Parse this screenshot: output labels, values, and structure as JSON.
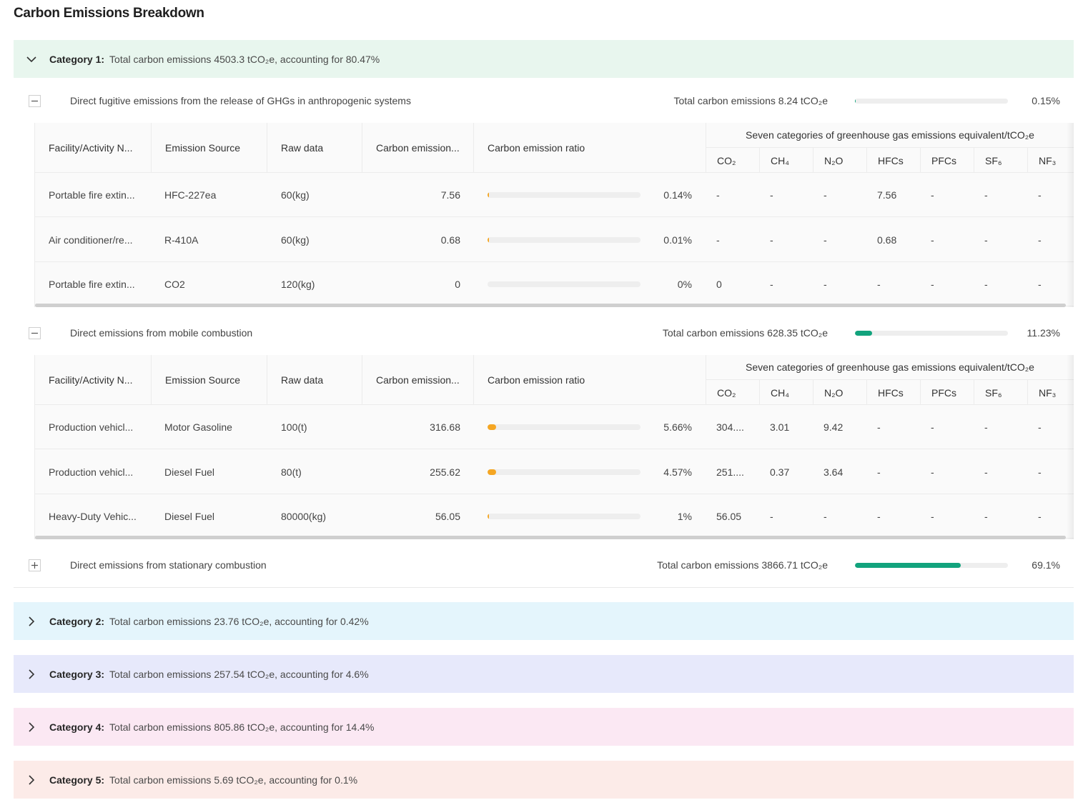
{
  "page_title": "Carbon Emissions Breakdown",
  "colors": {
    "cat1_bg": "#e8f6ee",
    "cat2_bg": "#e4f5fc",
    "cat3_bg": "#e7e9fb",
    "cat4_bg": "#fbe8f3",
    "cat5_bg": "#fcebe8",
    "progress_green": "#12a37d",
    "ratio_orange": "#f5a623"
  },
  "categories": [
    {
      "name": "Category 1:",
      "summary": "Total carbon emissions 4503.3 tCO₂e, accounting for 80.47%",
      "expanded": true
    },
    {
      "name": "Category 2:",
      "summary": "Total carbon emissions 23.76 tCO₂e, accounting for 0.42%",
      "expanded": false
    },
    {
      "name": "Category 3:",
      "summary": "Total carbon emissions 257.54 tCO₂e, accounting for 4.6%",
      "expanded": false
    },
    {
      "name": "Category 4:",
      "summary": "Total carbon emissions 805.86 tCO₂e, accounting for 14.4%",
      "expanded": false
    },
    {
      "name": "Category 5:",
      "summary": "Total carbon emissions 5.69 tCO₂e, accounting for 0.1%",
      "expanded": false
    }
  ],
  "table_headers": {
    "facility": "Facility/Activity N...",
    "source": "Emission Source",
    "raw": "Raw data",
    "emission": "Carbon emission...",
    "ratio": "Carbon emission ratio",
    "ghg_group": "Seven categories of greenhouse gas emissions equivalent/tCO₂e",
    "ghg": [
      "CO₂",
      "CH₄",
      "N₂O",
      "HFCs",
      "PFCs",
      "SF₆",
      "NF₃"
    ]
  },
  "subcategories": [
    {
      "label": "Direct fugitive emissions from the release of GHGs in anthropogenic systems",
      "total": "Total carbon emissions 8.24 tCO₂e",
      "pct": "0.15%",
      "progress": 0.0015,
      "expanded": true,
      "rows": [
        {
          "facility": "Portable fire extin...",
          "source": "HFC-227ea",
          "raw": "60(kg)",
          "emission": "7.56",
          "ratio": "0.14%",
          "ratio_value": 0.0014,
          "ghg": [
            "-",
            "-",
            "-",
            "7.56",
            "-",
            "-",
            "-"
          ]
        },
        {
          "facility": "Air conditioner/re...",
          "source": "R-410A",
          "raw": "60(kg)",
          "emission": "0.68",
          "ratio": "0.01%",
          "ratio_value": 0.0001,
          "ghg": [
            "-",
            "-",
            "-",
            "0.68",
            "-",
            "-",
            "-"
          ]
        },
        {
          "facility": "Portable fire extin...",
          "source": "CO2",
          "raw": "120(kg)",
          "emission": "0",
          "ratio": "0%",
          "ratio_value": 0,
          "ghg": [
            "0",
            "-",
            "-",
            "-",
            "-",
            "-",
            "-"
          ]
        }
      ]
    },
    {
      "label": "Direct emissions from mobile combustion",
      "total": "Total carbon emissions 628.35 tCO₂e",
      "pct": "11.23%",
      "progress": 0.1123,
      "expanded": true,
      "rows": [
        {
          "facility": "Production vehicl...",
          "source": "Motor Gasoline",
          "raw": "100(t)",
          "emission": "316.68",
          "ratio": "5.66%",
          "ratio_value": 0.0566,
          "ghg": [
            "304....",
            "3.01",
            "9.42",
            "-",
            "-",
            "-",
            "-"
          ]
        },
        {
          "facility": "Production vehicl...",
          "source": "Diesel Fuel",
          "raw": "80(t)",
          "emission": "255.62",
          "ratio": "4.57%",
          "ratio_value": 0.0457,
          "ghg": [
            "251....",
            "0.37",
            "3.64",
            "-",
            "-",
            "-",
            "-"
          ]
        },
        {
          "facility": "Heavy-Duty Vehic...",
          "source": "Diesel Fuel",
          "raw": "80000(kg)",
          "emission": "56.05",
          "ratio": "1%",
          "ratio_value": 0.01,
          "ghg": [
            "56.05",
            "-",
            "-",
            "-",
            "-",
            "-",
            "-"
          ]
        }
      ]
    },
    {
      "label": "Direct emissions from stationary combustion",
      "total": "Total carbon emissions 3866.71 tCO₂e",
      "pct": "69.1%",
      "progress": 0.691,
      "expanded": false,
      "rows": []
    }
  ]
}
